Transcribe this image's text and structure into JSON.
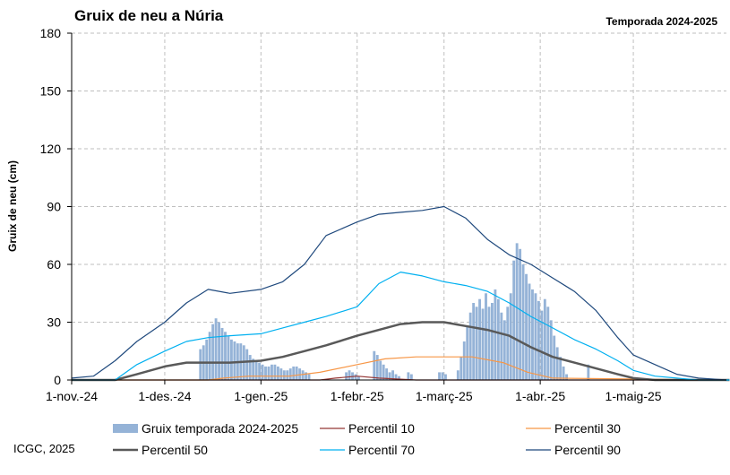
{
  "colors": {
    "bars": "#95B3D7",
    "p10": "#953735",
    "p30": "#F79646",
    "p50": "#595959",
    "p70": "#00B0F0",
    "p90": "#1F497D",
    "grid": "#BFBFBF",
    "axis": "#000000"
  },
  "chart_data": {
    "type": "bar",
    "title": "Gruix de neu a Núria",
    "subtitle": "Temporada 2024-2025",
    "ylabel": "Gruix de neu (cm)",
    "xlabel": "",
    "credit": "ICGC, 2025",
    "ylim": [
      0,
      180
    ],
    "yticks": [
      0,
      30,
      60,
      90,
      120,
      150,
      180
    ],
    "xlim": [
      "2024-11-01",
      "2025-05-31"
    ],
    "xticks": [
      {
        "date": "2024-11-01",
        "label": "1-nov.-24"
      },
      {
        "date": "2024-12-01",
        "label": "1-des.-24"
      },
      {
        "date": "2025-01-01",
        "label": "1-gen.-25"
      },
      {
        "date": "2025-02-01",
        "label": "1-febr.-25"
      },
      {
        "date": "2025-03-01",
        "label": "1-març-25"
      },
      {
        "date": "2025-04-01",
        "label": "1-abr.-25"
      },
      {
        "date": "2025-05-01",
        "label": "1-maig-25"
      }
    ],
    "grid": true,
    "legend_position": "bottom",
    "bar_series": {
      "name": "Gruix temporada 2024-2025",
      "start": "2024-11-01",
      "values": [
        0,
        0,
        0,
        0,
        0,
        0,
        0,
        0,
        0,
        0,
        0,
        0,
        0,
        0,
        0,
        0,
        0,
        0,
        0,
        0,
        0,
        0,
        0,
        0,
        0,
        0,
        0,
        0,
        0,
        0,
        0,
        0,
        0,
        0,
        0,
        0,
        0,
        0,
        0,
        0,
        0,
        16,
        18,
        21,
        25,
        29,
        32,
        30,
        27,
        25,
        23,
        21,
        20,
        19,
        19,
        18,
        16,
        13,
        11,
        10,
        9,
        8,
        7,
        7,
        8,
        8,
        7,
        6,
        5,
        5,
        6,
        7,
        7,
        6,
        5,
        4,
        3,
        0,
        0,
        0,
        0,
        0,
        0,
        0,
        0,
        0,
        0,
        0,
        4,
        5,
        4,
        3,
        2,
        0,
        0,
        0,
        0,
        15,
        13,
        10,
        8,
        6,
        4,
        5,
        3,
        2,
        0,
        0,
        4,
        3,
        0,
        0,
        0,
        0,
        0,
        0,
        0,
        0,
        4,
        4,
        3,
        0,
        0,
        0,
        5,
        12,
        20,
        28,
        35,
        40,
        38,
        42,
        37,
        45,
        38,
        40,
        47,
        42,
        35,
        31,
        38,
        45,
        62,
        71,
        68,
        60,
        55,
        50,
        47,
        45,
        41,
        36,
        42,
        38,
        31,
        23,
        17,
        12,
        7,
        3,
        0,
        0,
        0,
        0,
        0,
        0,
        8,
        0,
        0,
        0,
        0,
        0,
        0,
        0,
        0,
        0,
        0,
        0,
        0,
        0,
        0,
        0,
        0,
        0,
        0,
        0,
        0,
        0,
        0,
        0,
        0,
        0,
        0,
        0,
        0,
        0,
        0,
        0,
        0,
        0,
        0,
        0,
        0,
        0,
        0,
        0
      ]
    },
    "series": [
      {
        "name": "Percentil 10",
        "x": [
          "2024-11-01",
          "2025-01-20",
          "2025-01-25",
          "2025-02-01",
          "2025-02-08",
          "2025-02-20",
          "2025-06-01"
        ],
        "y": [
          0,
          0,
          1,
          2,
          1,
          0,
          0
        ]
      },
      {
        "name": "Percentil 30",
        "x": [
          "2024-11-01",
          "2024-12-15",
          "2024-12-20",
          "2024-12-28",
          "2025-01-10",
          "2025-01-20",
          "2025-02-01",
          "2025-02-10",
          "2025-02-20",
          "2025-03-01",
          "2025-03-10",
          "2025-03-20",
          "2025-03-28",
          "2025-04-05",
          "2025-06-01"
        ],
        "y": [
          0,
          0,
          1,
          2,
          2,
          4,
          8,
          11,
          12,
          12,
          12,
          9,
          4,
          1,
          0
        ]
      },
      {
        "name": "Percentil 50",
        "x": [
          "2024-11-01",
          "2024-11-15",
          "2024-11-22",
          "2024-12-01",
          "2024-12-08",
          "2024-12-15",
          "2024-12-22",
          "2025-01-01",
          "2025-01-08",
          "2025-01-15",
          "2025-01-22",
          "2025-02-01",
          "2025-02-08",
          "2025-02-15",
          "2025-02-22",
          "2025-03-01",
          "2025-03-08",
          "2025-03-15",
          "2025-03-22",
          "2025-03-29",
          "2025-04-05",
          "2025-04-12",
          "2025-04-19",
          "2025-04-26",
          "2025-05-01",
          "2025-05-08",
          "2025-06-01"
        ],
        "y": [
          0,
          0,
          3,
          7,
          9,
          9,
          9,
          10,
          12,
          15,
          18,
          23,
          26,
          29,
          30,
          30,
          28,
          26,
          23,
          17,
          12,
          9,
          6,
          3,
          1,
          0,
          0
        ]
      },
      {
        "name": "Percentil 70",
        "x": [
          "2024-11-01",
          "2024-11-15",
          "2024-11-22",
          "2024-12-01",
          "2024-12-08",
          "2024-12-15",
          "2024-12-22",
          "2025-01-01",
          "2025-01-08",
          "2025-01-15",
          "2025-01-22",
          "2025-02-01",
          "2025-02-08",
          "2025-02-15",
          "2025-02-22",
          "2025-03-01",
          "2025-03-08",
          "2025-03-15",
          "2025-03-22",
          "2025-03-29",
          "2025-04-05",
          "2025-04-12",
          "2025-04-19",
          "2025-04-26",
          "2025-05-01",
          "2025-05-08",
          "2025-05-15",
          "2025-05-22",
          "2025-06-01"
        ],
        "y": [
          0,
          0,
          8,
          15,
          20,
          22,
          23,
          24,
          27,
          30,
          33,
          38,
          50,
          56,
          54,
          51,
          49,
          46,
          40,
          33,
          27,
          21,
          16,
          10,
          5,
          2,
          1,
          0,
          0
        ]
      },
      {
        "name": "Percentil 90",
        "x": [
          "2024-11-01",
          "2024-11-08",
          "2024-11-15",
          "2024-11-22",
          "2024-12-01",
          "2024-12-08",
          "2024-12-15",
          "2024-12-22",
          "2025-01-01",
          "2025-01-08",
          "2025-01-15",
          "2025-01-22",
          "2025-02-01",
          "2025-02-08",
          "2025-02-15",
          "2025-02-22",
          "2025-03-01",
          "2025-03-08",
          "2025-03-15",
          "2025-03-22",
          "2025-03-29",
          "2025-04-05",
          "2025-04-12",
          "2025-04-19",
          "2025-04-26",
          "2025-05-01",
          "2025-05-08",
          "2025-05-15",
          "2025-05-22",
          "2025-05-31"
        ],
        "y": [
          1,
          2,
          10,
          20,
          30,
          40,
          47,
          45,
          47,
          51,
          60,
          75,
          82,
          86,
          87,
          88,
          90,
          84,
          73,
          65,
          60,
          53,
          46,
          36,
          22,
          13,
          8,
          3,
          1,
          0
        ]
      }
    ],
    "legend": [
      {
        "key": "bars",
        "label": "Gruix temporada 2024-2025"
      },
      {
        "key": "p10",
        "label": "Percentil 10"
      },
      {
        "key": "p30",
        "label": "Percentil 30"
      },
      {
        "key": "p50",
        "label": "Percentil 50"
      },
      {
        "key": "p70",
        "label": "Percentil 70"
      },
      {
        "key": "p90",
        "label": "Percentil 90"
      }
    ]
  }
}
